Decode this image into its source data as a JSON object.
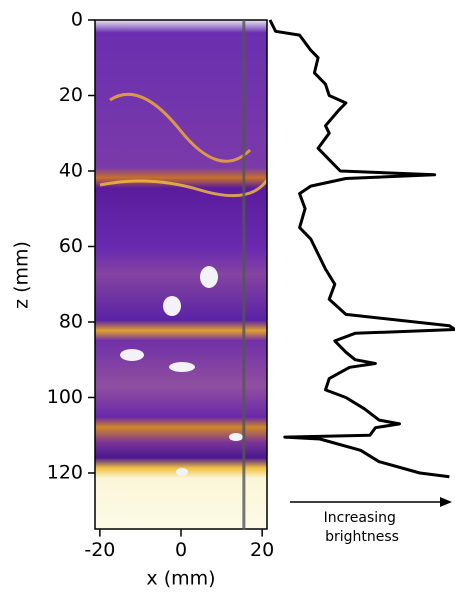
{
  "chart_data": [
    {
      "type": "image",
      "xlabel": "x (mm)",
      "ylabel": "z (mm)",
      "xlim": [
        -21.2,
        21.2
      ],
      "xticks": [
        -20,
        0,
        20
      ],
      "ylim": [
        135,
        0
      ],
      "yticks": [
        0,
        20,
        40,
        60,
        80,
        100,
        120
      ],
      "slice_x": 15.5,
      "slice_color": "#555555"
    },
    {
      "type": "line",
      "xlabel": [
        "Increasing",
        "brightness"
      ],
      "color": "#000000",
      "xlim": [
        0,
        1
      ],
      "ylim": [
        135,
        0
      ],
      "y": [
        0,
        3,
        4,
        8,
        10,
        14,
        17,
        20,
        22,
        24,
        28,
        30,
        34,
        37,
        40,
        41,
        42,
        44,
        46,
        50,
        55,
        58,
        62,
        66,
        70,
        74,
        78,
        81,
        82,
        83,
        85,
        88,
        90,
        91,
        92,
        95,
        98,
        100,
        103,
        106,
        107,
        108,
        110,
        110.5,
        111,
        114,
        117,
        120,
        121
      ],
      "x": [
        0,
        0.03,
        0.16,
        0.22,
        0.26,
        0.24,
        0.3,
        0.32,
        0.41,
        0.37,
        0.3,
        0.32,
        0.26,
        0.32,
        0.38,
        0.89,
        0.41,
        0.22,
        0.16,
        0.19,
        0.16,
        0.22,
        0.26,
        0.3,
        0.35,
        0.32,
        0.41,
        0.97,
        1.0,
        0.46,
        0.35,
        0.41,
        0.46,
        0.57,
        0.43,
        0.32,
        0.3,
        0.41,
        0.51,
        0.59,
        0.7,
        0.57,
        0.54,
        0.08,
        0.27,
        0.49,
        0.59,
        0.81,
        0.97
      ]
    }
  ]
}
